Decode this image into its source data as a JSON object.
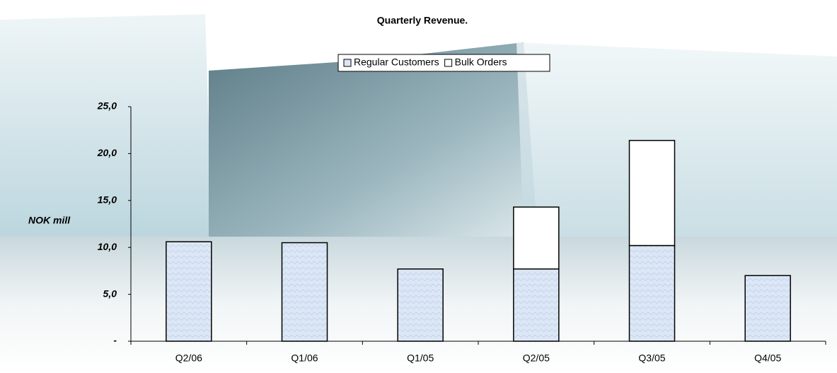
{
  "chart_data": {
    "type": "stacked_bar",
    "title": "Quarterly Revenue.",
    "y_label": "NOK mill",
    "categories": [
      "Q2/06",
      "Q1/06",
      "Q1/05",
      "Q2/05",
      "Q3/05",
      "Q4/05"
    ],
    "series": [
      {
        "name": "Regular Customers",
        "color": "#dce7f6",
        "values": [
          10.6,
          10.5,
          7.7,
          7.7,
          10.2,
          7.0
        ]
      },
      {
        "name": "Bulk Orders",
        "color": "#ffffff",
        "values": [
          0,
          0,
          0,
          6.6,
          11.2,
          0
        ]
      }
    ],
    "ylim": [
      0,
      25
    ],
    "yticks": [
      {
        "value": 0,
        "label": "-"
      },
      {
        "value": 5,
        "label": "5,0"
      },
      {
        "value": 10,
        "label": "10,0"
      },
      {
        "value": 15,
        "label": "15,0"
      },
      {
        "value": 20,
        "label": "20,0"
      },
      {
        "value": 25,
        "label": "25,0"
      }
    ],
    "legend": "top"
  }
}
